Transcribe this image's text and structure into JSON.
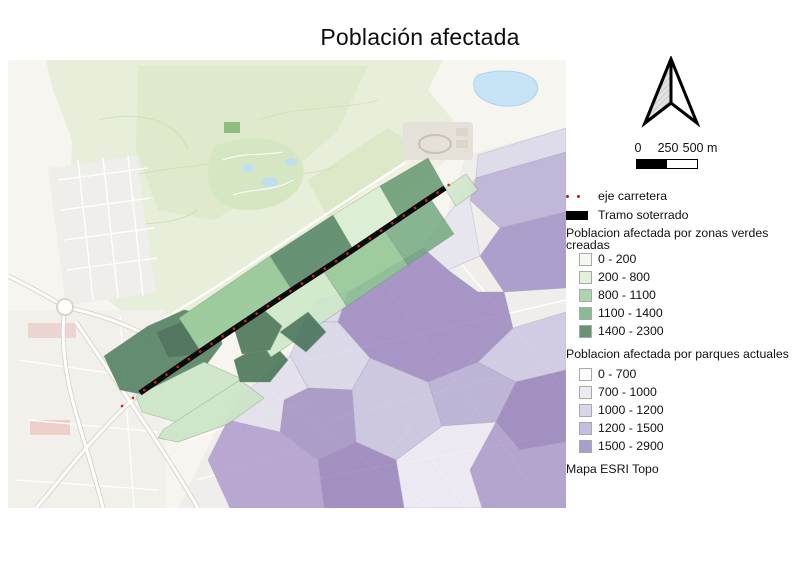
{
  "title": "Población afectada",
  "scalebar": {
    "labels": [
      "0",
      "250",
      "500 m"
    ]
  },
  "legend": {
    "items": [
      {
        "label": "eje carretera",
        "symbol": "dotted-line",
        "color": "#c41717"
      },
      {
        "label": "Tramo soterrado",
        "symbol": "solid-rect",
        "color": "#000000"
      }
    ],
    "groups": [
      {
        "title": "Poblacion afectada por zonas verdes creadas",
        "classes": [
          {
            "label": "0 - 200",
            "color": "#f4faf1"
          },
          {
            "label": "200 - 800",
            "color": "#e1f2da"
          },
          {
            "label": "800 - 1100",
            "color": "#abd5ad"
          },
          {
            "label": "1100 - 1400",
            "color": "#88bb93"
          },
          {
            "label": "1400 - 2300",
            "color": "#699272"
          }
        ]
      },
      {
        "title": "Poblacion afectada por parques actuales",
        "classes": [
          {
            "label": "0 - 700",
            "color": "#fcfbfd"
          },
          {
            "label": "700 - 1000",
            "color": "#ecebf4"
          },
          {
            "label": "1000 - 1200",
            "color": "#d9d6ea"
          },
          {
            "label": "1200 - 1500",
            "color": "#c4bfe0"
          },
          {
            "label": "1500 - 2900",
            "color": "#a89dce"
          }
        ]
      }
    ],
    "basemap_label": "Mapa ESRI Topo"
  },
  "map": {
    "road_line_color": "#0a0a0a",
    "road_dots_color": "#d92020"
  }
}
